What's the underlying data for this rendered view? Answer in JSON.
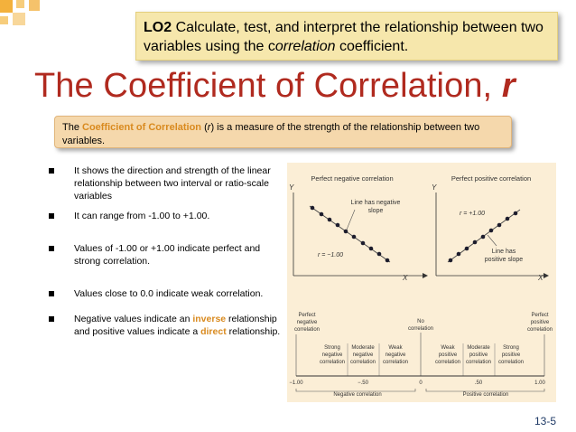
{
  "objective": {
    "code": "LO2",
    "text_before": "Calculate, test, and interpret the relationship between two variables using the c",
    "text_em": "orrelation",
    "text_after": " coefficient."
  },
  "title": {
    "main": "The Coefficient of Correlation, ",
    "symbol": "r"
  },
  "definition": {
    "prefix": "The ",
    "term": "Coefficient of Correlation",
    "symbol_open": " (",
    "symbol": "r",
    "rest": ") is a measure of the strength of the relationship between two variables."
  },
  "bullets": [
    {
      "text": "It shows the direction and strength of the linear relationship between two interval or ratio-scale variables"
    },
    {
      "text": "It can range from -1.00 to +1.00."
    },
    {
      "text": "Values of -1.00 or +1.00 indicate perfect and strong correlation."
    },
    {
      "text": "Values close to 0.0 indicate weak correlation."
    },
    {
      "before": "Negative values indicate an ",
      "hl1": "inverse",
      "middle": " relationship and positive values indicate a ",
      "hl2": "direct",
      "after": " relationship."
    }
  ],
  "figure": {
    "panel_neg": {
      "title": "Perfect negative correlation",
      "y_label": "Y",
      "x_label": "X",
      "note_line1": "Line has negative",
      "note_line2": "slope",
      "r_label": "r = −1.00"
    },
    "panel_pos": {
      "title": "Perfect positive correlation",
      "y_label": "Y",
      "x_label": "X",
      "note_line1": "Line has",
      "note_line2": "positive slope",
      "r_label": "r = +1.00"
    },
    "scale": {
      "left_line1": "Perfect",
      "left_line2": "negative",
      "left_line3": "correlation",
      "center_line1": "No",
      "center_line2": "correlation",
      "right_line1": "Perfect",
      "right_line2": "positive",
      "right_line3": "correlation",
      "neg_strong_1": "Strong",
      "neg_strong_2": "negative",
      "neg_strong_3": "correlation",
      "neg_mod_1": "Moderate",
      "neg_mod_2": "negative",
      "neg_mod_3": "correlation",
      "neg_weak_1": "Weak",
      "neg_weak_2": "negative",
      "neg_weak_3": "correlation",
      "pos_weak_1": "Weak",
      "pos_weak_2": "positive",
      "pos_weak_3": "correlation",
      "pos_mod_1": "Moderate",
      "pos_mod_2": "positive",
      "pos_mod_3": "correlation",
      "pos_strong_1": "Strong",
      "pos_strong_2": "positive",
      "pos_strong_3": "correlation",
      "tick_m100": "−1.00",
      "tick_m50": "−.50",
      "tick_0": "0",
      "tick_p50": ".50",
      "tick_p100": "1.00",
      "neg_caption": "Negative correlation",
      "pos_caption": "Positive correlation"
    }
  },
  "page_number": "13-5",
  "colors": {
    "title": "#b02a1f",
    "highlight": "#d98a1f",
    "lo_box": "#f6e7ac",
    "def_box": "#f5d8ac",
    "figure_bg": "#fbeed6"
  }
}
